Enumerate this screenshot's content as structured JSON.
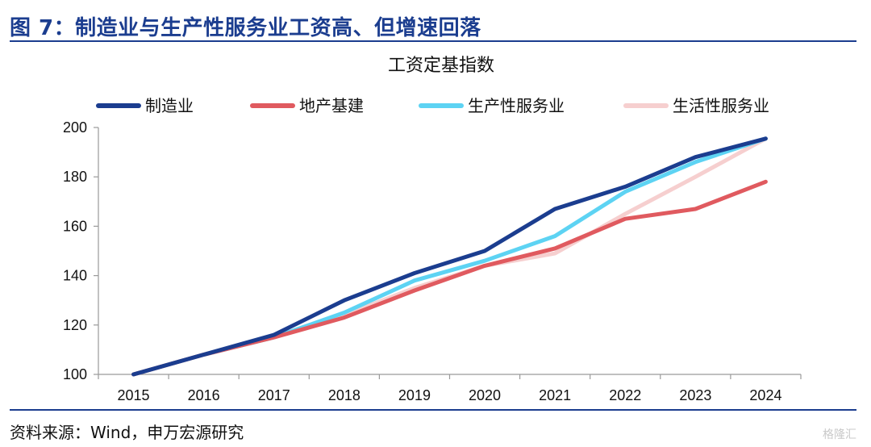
{
  "figure_title": "图 7：制造业与生产性服务业工资高、但增速回落",
  "source": "资料来源：Wind，申万宏源研究",
  "watermark": "格隆汇",
  "chart_data": {
    "type": "line",
    "title": "工资定基指数",
    "xlabel": "",
    "ylabel": "",
    "categories": [
      "2015",
      "2016",
      "2017",
      "2018",
      "2019",
      "2020",
      "2021",
      "2022",
      "2023",
      "2024"
    ],
    "ylim": [
      100,
      200
    ],
    "yticks": [
      100,
      120,
      140,
      160,
      180,
      200
    ],
    "grid": false,
    "legend_position": "top",
    "series": [
      {
        "name": "制造业",
        "color": "#1b3d8f",
        "values": [
          100,
          108,
          116,
          130,
          141,
          150,
          167,
          176,
          188,
          195.5
        ]
      },
      {
        "name": "地产基建",
        "color": "#e05a5f",
        "values": [
          100,
          108,
          115,
          123,
          134,
          144,
          151,
          163,
          167,
          178
        ]
      },
      {
        "name": "生产性服务业",
        "color": "#5dd3f3",
        "values": [
          100,
          108,
          115,
          125,
          138,
          146,
          156,
          174,
          186,
          195.5
        ]
      },
      {
        "name": "生活性服务业",
        "color": "#f6cfcf",
        "values": [
          100,
          108,
          115,
          124,
          135,
          144,
          149,
          165,
          180,
          195.5
        ]
      }
    ]
  }
}
